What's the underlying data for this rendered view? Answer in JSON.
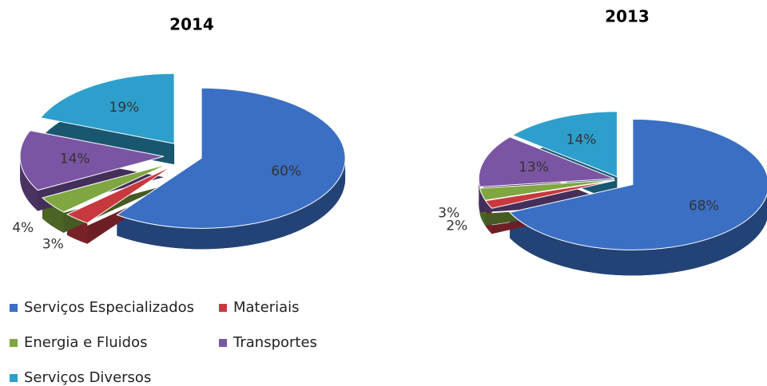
{
  "chart_data": [
    {
      "type": "pie",
      "title": "2014",
      "categories": [
        "Serviços Especializados",
        "Materiais",
        "Energia e Fluidos",
        "Transportes",
        "Serviços Diversos"
      ],
      "values": [
        60,
        3,
        4,
        14,
        19
      ],
      "value_labels": [
        "60%",
        "3%",
        "4%",
        "14%",
        "19%"
      ],
      "colors": [
        "#3a6fc4",
        "#c8383f",
        "#7fa640",
        "#7b55a3",
        "#2e9fcc"
      ],
      "legend": "bottom"
    },
    {
      "type": "pie",
      "title": "2013",
      "values": [
        68,
        2,
        3,
        13,
        14
      ],
      "value_labels": [
        "68%",
        "2%",
        "3%",
        "13%",
        "14%"
      ],
      "colors": [
        "#3a6fc4",
        "#c8383f",
        "#7fa640",
        "#7b55a3",
        "#2e9fcc"
      ]
    }
  ]
}
